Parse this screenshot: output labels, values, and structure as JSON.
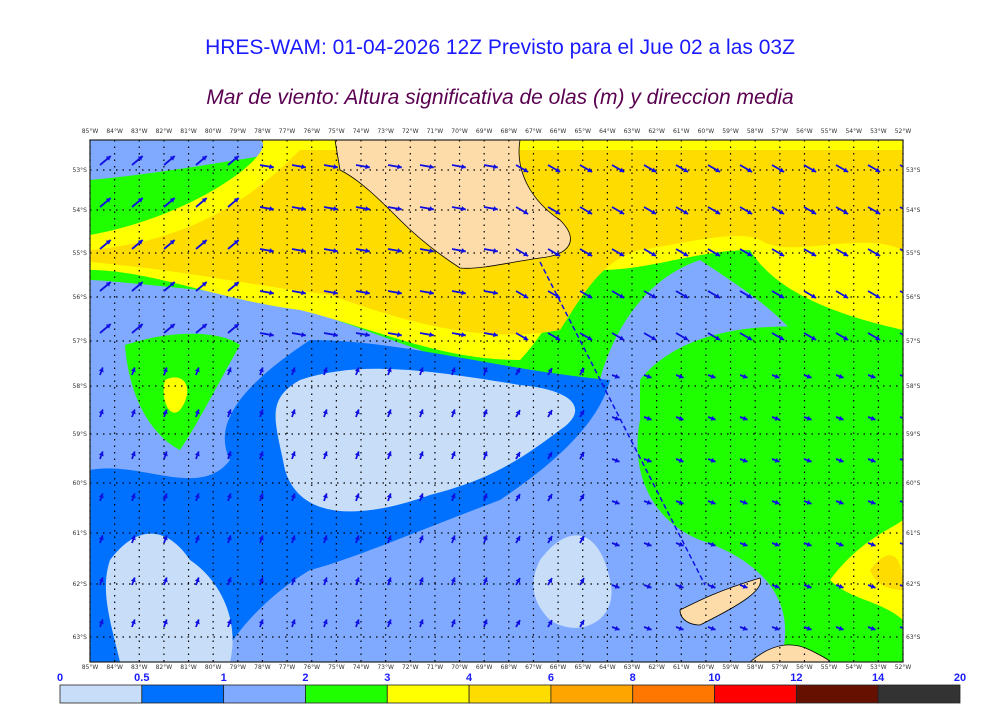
{
  "title": "HRES-WAM: 01-04-2026 12Z Previsto para el Jue 02 a las 03Z",
  "subtitle": "Mar de viento: Altura significativa de olas (m) y direccion media",
  "map": {
    "lon_labels": [
      "85°W",
      "84°W",
      "83°W",
      "82°W",
      "81°W",
      "80°W",
      "79°W",
      "78°W",
      "77°W",
      "76°W",
      "75°W",
      "74°W",
      "73°W",
      "72°W",
      "71°W",
      "70°W",
      "69°W",
      "68°W",
      "67°W",
      "66°W",
      "65°W",
      "64°W",
      "63°W",
      "62°W",
      "61°W",
      "60°W",
      "59°W",
      "58°W",
      "57°W",
      "56°W",
      "55°W",
      "54°W",
      "53°W",
      "52°W"
    ],
    "lat_labels": [
      "53°S",
      "54°S",
      "55°S",
      "56°S",
      "57°S",
      "58°S",
      "59°S",
      "60°S",
      "61°S",
      "62°S",
      "63°S"
    ],
    "arrow_color": "#1010e0",
    "land_color": "#fddcaa"
  },
  "colorbar": {
    "ticks": [
      "0",
      "0.5",
      "1",
      "2",
      "3",
      "4",
      "6",
      "8",
      "10",
      "12",
      "14",
      "20"
    ],
    "colors": [
      "#c8ddf8",
      "#0070ff",
      "#7faaff",
      "#20ff00",
      "#ffff00",
      "#ffdc00",
      "#ffa500",
      "#ff7700",
      "#ff0000",
      "#661000",
      "#333333"
    ]
  }
}
